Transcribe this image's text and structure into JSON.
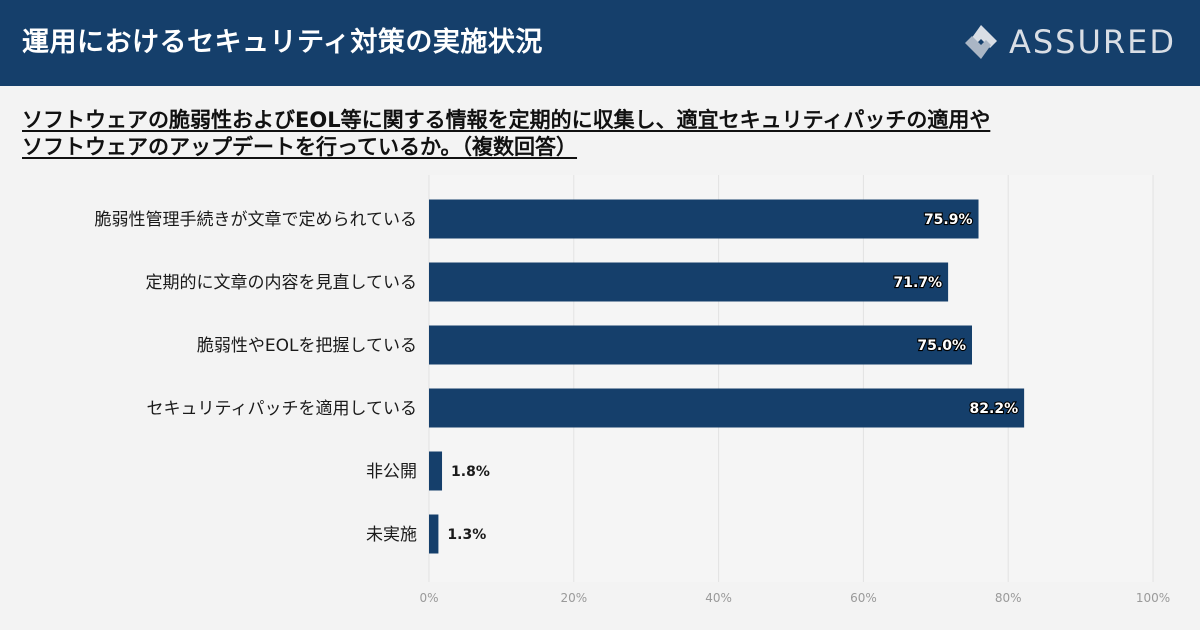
{
  "header": {
    "title": "運用におけるセキュリティ対策の実施状況",
    "logo_text": "ASSURED"
  },
  "question": {
    "line1": "ソフトウェアの脆弱性およびEOL等に関する情報を定期的に収集し、適宜セキュリティパッチの適用や",
    "line2": "ソフトウェアのアップデートを行っているか。（複数回答）"
  },
  "colors": {
    "header_bg": "#153f6b",
    "bar": "#153f6b",
    "background": "#f3f3f3"
  },
  "chart_data": {
    "type": "bar",
    "orientation": "horizontal",
    "categories": [
      "脆弱性管理手続きが文章で定められている",
      "定期的に文章の内容を見直している",
      "脆弱性やEOLを把握している",
      "セキュリティパッチを適用している",
      "非公開",
      "未実施"
    ],
    "values": [
      75.9,
      71.7,
      75.0,
      82.2,
      1.8,
      1.3
    ],
    "value_labels": [
      "75.9%",
      "71.7%",
      "75.0%",
      "82.2%",
      "1.8%",
      "1.3%"
    ],
    "xlim": [
      0,
      100
    ],
    "x_ticks": [
      "0%",
      "20%",
      "40%",
      "60%",
      "80%",
      "100%"
    ],
    "grid": true,
    "legend": "none"
  }
}
